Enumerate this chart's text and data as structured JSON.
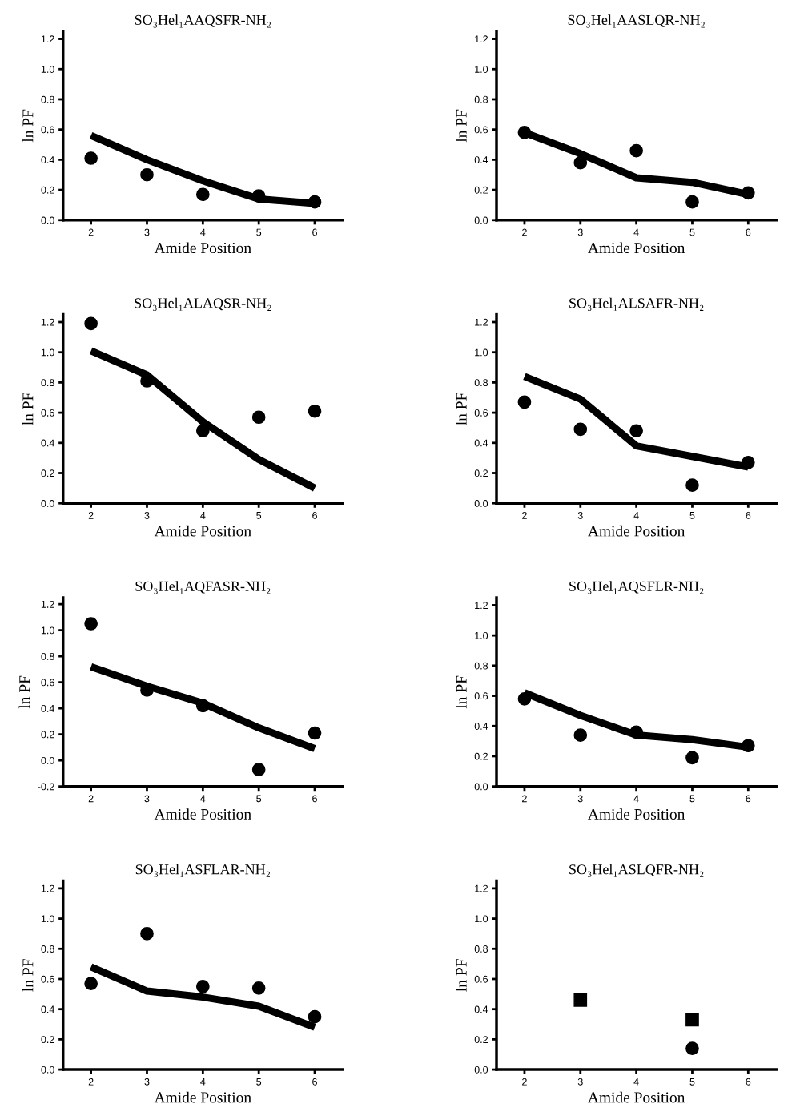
{
  "chart_data": [
    {
      "type": "scatter",
      "title": "SO₃Hel₁AAQSFR-NH₂",
      "xlabel": "Amide Position",
      "ylabel": "ln PF",
      "x": [
        2,
        3,
        4,
        5,
        6
      ],
      "xlim": [
        1.5,
        6.5
      ],
      "xticks": [
        2,
        3,
        4,
        5,
        6
      ],
      "ylim": [
        0,
        1.25
      ],
      "yticks": [
        {
          "value": 0,
          "label": "0.0"
        },
        0.2,
        0.4,
        0.6,
        0.8,
        {
          "value": 1,
          "label": "1.0"
        },
        1.2
      ],
      "marker": "circle",
      "series": [
        {
          "color": "#000000",
          "values": [
            0.41,
            0.3,
            0.17,
            0.16,
            0.12
          ]
        },
        {
          "type": "line",
          "color": "#000000",
          "marker": "none",
          "line_style": "solid",
          "values": [
            0.56,
            0.4,
            0.26,
            0.14,
            0.11
          ]
        }
      ]
    },
    {
      "type": "scatter",
      "title": "SO₃Hel₁AASLQR-NH₂",
      "xlabel": "Amide Position",
      "ylabel": "ln PF",
      "x": [
        2,
        3,
        4,
        5,
        6
      ],
      "xlim": [
        1.5,
        6.5
      ],
      "xticks": [
        2,
        3,
        4,
        5,
        6
      ],
      "ylim": [
        0,
        1.25
      ],
      "yticks": [
        {
          "value": 0,
          "label": "0.0"
        },
        0.2,
        0.4,
        0.6,
        0.8,
        {
          "value": 1,
          "label": "1.0"
        },
        1.2
      ],
      "marker": "circle",
      "series": [
        {
          "color": "#000000",
          "values": [
            0.58,
            0.38,
            0.46,
            0.12,
            0.18
          ]
        },
        {
          "type": "line",
          "color": "#000000",
          "marker": "none",
          "line_style": "solid",
          "values": [
            0.58,
            0.44,
            0.28,
            0.25,
            0.17
          ]
        }
      ]
    },
    {
      "type": "scatter",
      "title": "SO₃Hel₁ALAQSR-NH₂",
      "xlabel": "Amide Position",
      "ylabel": "ln PF",
      "x": [
        2,
        3,
        4,
        5,
        6
      ],
      "xlim": [
        1.5,
        6.5
      ],
      "xticks": [
        2,
        3,
        4,
        5,
        6
      ],
      "ylim": [
        0,
        1.25
      ],
      "yticks": [
        {
          "value": 0,
          "label": "0.0"
        },
        0.2,
        0.4,
        0.6,
        0.8,
        {
          "value": 1,
          "label": "1.0"
        },
        1.2
      ],
      "marker": "circle",
      "series": [
        {
          "color": "#000000",
          "values": [
            1.19,
            0.81,
            0.48,
            0.57,
            0.61
          ]
        },
        {
          "type": "line",
          "color": "#000000",
          "marker": "none",
          "line_style": "solid",
          "values": [
            1.01,
            0.85,
            0.54,
            0.29,
            0.1
          ]
        }
      ]
    },
    {
      "type": "scatter",
      "title": "SO₃Hel₁ALSAFR-NH₂",
      "xlabel": "Amide Position",
      "ylabel": "ln PF",
      "x": [
        2,
        3,
        4,
        5,
        6
      ],
      "xlim": [
        1.5,
        6.5
      ],
      "xticks": [
        2,
        3,
        4,
        5,
        6
      ],
      "ylim": [
        0,
        1.25
      ],
      "yticks": [
        {
          "value": 0,
          "label": "0.0"
        },
        0.2,
        0.4,
        0.6,
        0.8,
        {
          "value": 1,
          "label": "1.0"
        },
        1.2
      ],
      "marker": "circle",
      "series": [
        {
          "color": "#000000",
          "values": [
            0.67,
            0.49,
            0.48,
            0.12,
            0.27
          ]
        },
        {
          "type": "line",
          "color": "#000000",
          "marker": "none",
          "line_style": "solid",
          "values": [
            0.84,
            0.69,
            0.38,
            0.31,
            0.24
          ]
        }
      ]
    },
    {
      "type": "scatter",
      "title": "SO₃Hel₁AQFASR-NH₂",
      "xlabel": "Amide Position",
      "ylabel": "ln PF",
      "x": [
        2,
        3,
        4,
        5,
        6
      ],
      "xlim": [
        1.5,
        6.5
      ],
      "xticks": [
        2,
        3,
        4,
        5,
        6
      ],
      "ylim": [
        -0.2,
        1.25
      ],
      "yticks": [
        {
          "value": -0.2,
          "label": "-0.2"
        },
        {
          "value": 0,
          "label": "0.0"
        },
        0.2,
        0.4,
        0.6,
        0.8,
        {
          "value": 1,
          "label": "1.0"
        },
        1.2
      ],
      "marker": "circle",
      "series": [
        {
          "color": "#000000",
          "values": [
            1.05,
            0.54,
            0.42,
            -0.07,
            0.21
          ]
        },
        {
          "type": "line",
          "color": "#000000",
          "marker": "none",
          "line_style": "solid",
          "values": [
            0.72,
            0.57,
            0.44,
            0.25,
            0.09
          ]
        }
      ]
    },
    {
      "type": "scatter",
      "title": "SO₃Hel₁AQSFLR-NH₂",
      "xlabel": "Amide Position",
      "ylabel": "ln PF",
      "x": [
        2,
        3,
        4,
        5,
        6
      ],
      "xlim": [
        1.5,
        6.5
      ],
      "xticks": [
        2,
        3,
        4,
        5,
        6
      ],
      "ylim": [
        0,
        1.25
      ],
      "yticks": [
        {
          "value": 0,
          "label": "0.0"
        },
        0.2,
        0.4,
        0.6,
        0.8,
        {
          "value": 1,
          "label": "1.0"
        },
        1.2
      ],
      "marker": "circle",
      "series": [
        {
          "color": "#000000",
          "values": [
            0.58,
            0.34,
            0.36,
            0.19,
            0.27
          ]
        },
        {
          "type": "line",
          "color": "#000000",
          "marker": "none",
          "line_style": "solid",
          "values": [
            0.62,
            0.47,
            0.34,
            0.31,
            0.26
          ]
        }
      ]
    },
    {
      "type": "scatter",
      "title": "SO₃Hel₁ASFLAR-NH₂",
      "xlabel": "Amide Position",
      "ylabel": "ln PF",
      "x": [
        2,
        3,
        4,
        5,
        6
      ],
      "xlim": [
        1.5,
        6.5
      ],
      "xticks": [
        2,
        3,
        4,
        5,
        6
      ],
      "ylim": [
        0,
        1.25
      ],
      "yticks": [
        {
          "value": 0,
          "label": "0.0"
        },
        0.2,
        0.4,
        0.6,
        0.8,
        {
          "value": 1,
          "label": "1.0"
        },
        1.2
      ],
      "marker": "circle",
      "series": [
        {
          "color": "#000000",
          "values": [
            0.57,
            0.9,
            0.55,
            0.54,
            0.35
          ]
        },
        {
          "type": "line",
          "color": "#000000",
          "marker": "none",
          "line_style": "solid",
          "values": [
            0.68,
            0.52,
            0.48,
            0.42,
            0.28
          ]
        }
      ]
    },
    {
      "type": "scatter",
      "title": "SO₃Hel₁ASLQFR-NH₂",
      "xlabel": "Amide Position",
      "ylabel": "ln PF",
      "x": [
        3,
        5
      ],
      "xlim": [
        1.5,
        6.5
      ],
      "xticks": [
        2,
        3,
        4,
        5,
        6
      ],
      "ylim": [
        0,
        1.25
      ],
      "yticks": [
        {
          "value": 0,
          "label": "0.0"
        },
        0.2,
        0.4,
        0.6,
        0.8,
        {
          "value": 1,
          "label": "1.0"
        },
        1.2
      ],
      "marker": "circle",
      "series": [
        {
          "color": "#000000",
          "marker": "square",
          "values": [
            0.46,
            0.33
          ]
        },
        {
          "color": "#000000",
          "values": [
            null,
            0.14
          ]
        }
      ]
    }
  ]
}
